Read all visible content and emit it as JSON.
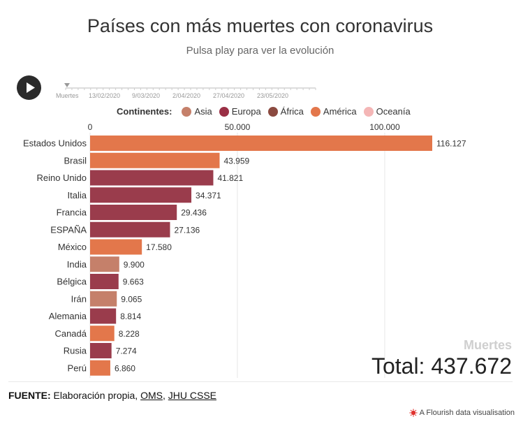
{
  "header": {
    "title": "Países con más muertes con coronavirus",
    "subtitle": "Pulsa play para ver la evolución"
  },
  "timeline": {
    "label": "Muertes",
    "dates": [
      "13/02/2020",
      "9/03/2020",
      "2/04/2020",
      "27/04/2020",
      "23/05/2020"
    ]
  },
  "legend": {
    "title": "Continentes:",
    "items": [
      {
        "label": "Asia",
        "color": "#c5806a"
      },
      {
        "label": "Europa",
        "color": "#9a3c4c"
      },
      {
        "label": "África",
        "color": "#8b4a40"
      },
      {
        "label": "América",
        "color": "#e3774b"
      },
      {
        "label": "Oceanía",
        "color": "#f4b6b6"
      }
    ]
  },
  "chart_data": {
    "type": "bar",
    "orientation": "horizontal",
    "xlim": [
      0,
      116127
    ],
    "x_ticks": [
      0,
      50000,
      100000
    ],
    "x_tick_labels": [
      "0",
      "50.000",
      "100.000"
    ],
    "categories": [
      "Estados Unidos",
      "Brasil",
      "Reino Unido",
      "Italia",
      "Francia",
      "ESPAÑA",
      "México",
      "India",
      "Bélgica",
      "Irán",
      "Alemania",
      "Canadá",
      "Rusia",
      "Perú"
    ],
    "values": [
      116127,
      43959,
      41821,
      34371,
      29436,
      27136,
      17580,
      9900,
      9663,
      9065,
      8814,
      8228,
      7274,
      6860
    ],
    "value_labels": [
      "116.127",
      "43.959",
      "41.821",
      "34.371",
      "29.436",
      "27.136",
      "17.580",
      "9.900",
      "9.663",
      "9.065",
      "8.814",
      "8.228",
      "7.274",
      "6.860"
    ],
    "continent": [
      "América",
      "América",
      "Europa",
      "Europa",
      "Europa",
      "Europa",
      "América",
      "Asia",
      "Europa",
      "Asia",
      "Europa",
      "America",
      "Europa",
      "América"
    ],
    "bar_colors": [
      "#e3774b",
      "#e3774b",
      "#9a3c4c",
      "#9a3c4c",
      "#9a3c4c",
      "#9a3c4c",
      "#e3774b",
      "#c5806a",
      "#9a3c4c",
      "#c5806a",
      "#9a3c4c",
      "#e3774b",
      "#9a3c4c",
      "#e3774b"
    ],
    "total_caption": "Muertes",
    "total_text": "Total: 437.672"
  },
  "footer": {
    "source_label": "FUENTE:",
    "source_text": " Elaboración propia, ",
    "link1": "OMS",
    "sep": ", ",
    "link2": "JHU CSSE",
    "credit": "A Flourish data visualisation"
  }
}
